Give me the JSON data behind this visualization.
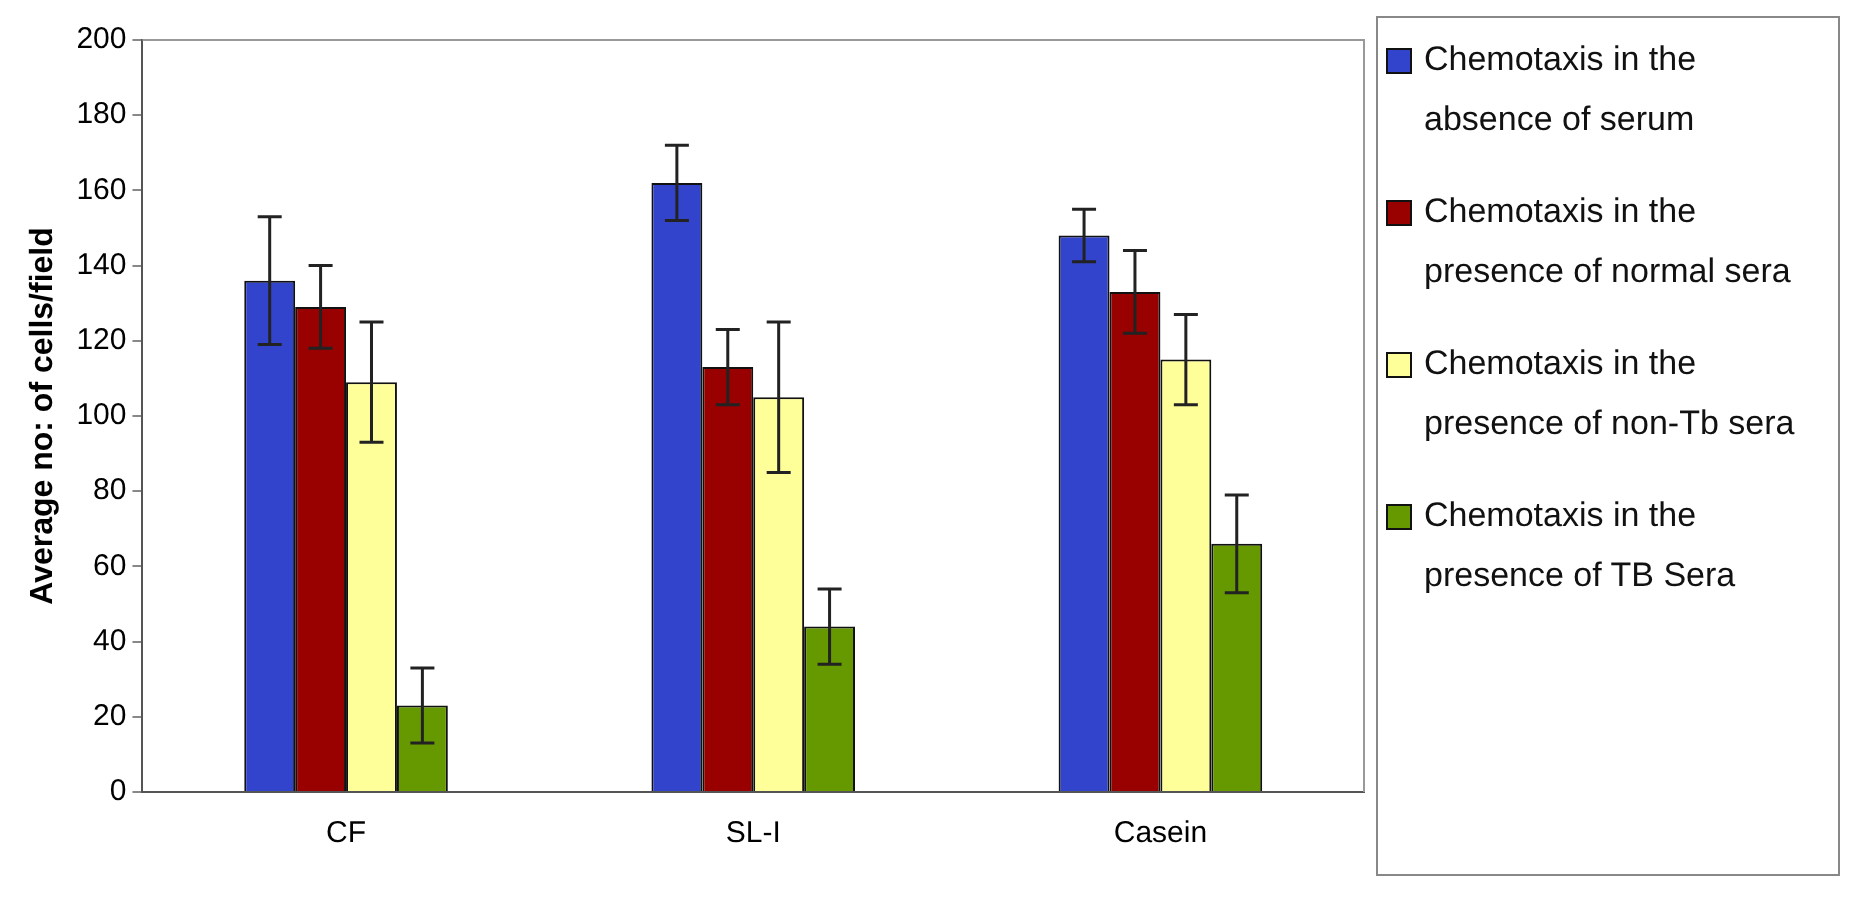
{
  "chart_data": {
    "type": "bar",
    "ylabel": "Average no: of cells/field",
    "categories": [
      "CF",
      "SL-I",
      "Casein"
    ],
    "series": [
      {
        "name": "Chemotaxis in the absence of serum",
        "color": "#3344cc",
        "values": [
          136,
          162,
          148
        ],
        "errors": [
          17,
          10,
          7
        ]
      },
      {
        "name": "Chemotaxis in the presence of normal sera",
        "color": "#990000",
        "values": [
          129,
          113,
          133
        ],
        "errors": [
          11,
          10,
          11
        ]
      },
      {
        "name": "Chemotaxis in the presence of non-Tb sera",
        "color": "#ffff99",
        "values": [
          109,
          105,
          115
        ],
        "errors": [
          16,
          20,
          12
        ]
      },
      {
        "name": "Chemotaxis in the presence of TB Sera",
        "color": "#669900",
        "values": [
          23,
          44,
          66
        ],
        "errors": [
          10,
          10,
          13
        ]
      }
    ],
    "ylim": [
      0,
      200
    ],
    "yticks": [
      0,
      20,
      40,
      60,
      80,
      100,
      120,
      140,
      160,
      180,
      200
    ],
    "grid": false,
    "legend": "right"
  }
}
